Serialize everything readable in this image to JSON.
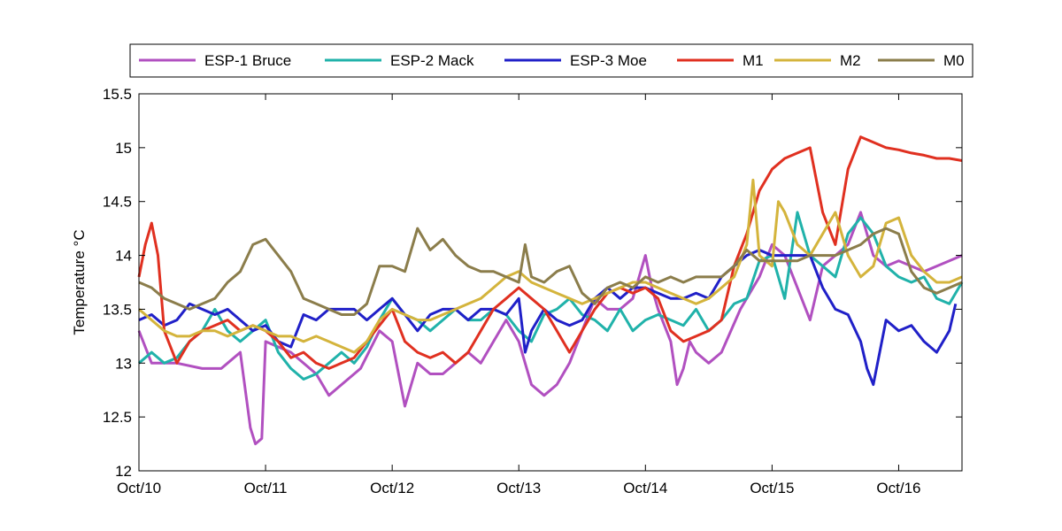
{
  "chart_data": {
    "type": "line",
    "xlabel": "",
    "ylabel": "Temperature °C",
    "x_ticks": [
      "Oct/10",
      "Oct/11",
      "Oct/12",
      "Oct/13",
      "Oct/14",
      "Oct/15",
      "Oct/16"
    ],
    "x_unit": "day offset from Oct/10",
    "xlim": [
      0,
      6.5
    ],
    "ylim": [
      12,
      15.5
    ],
    "y_ticks": [
      12,
      12.5,
      13,
      13.5,
      14,
      14.5,
      15,
      15.5
    ],
    "grid": false,
    "legend_position": "top, horizontal",
    "series": [
      {
        "name": "ESP-1 Bruce",
        "color": "#b150c0",
        "x": [
          0,
          0.1,
          0.3,
          0.5,
          0.65,
          0.8,
          0.88,
          0.92,
          0.97,
          1.0,
          1.2,
          1.4,
          1.5,
          1.6,
          1.75,
          1.9,
          2.0,
          2.1,
          2.2,
          2.3,
          2.4,
          2.5,
          2.6,
          2.7,
          2.8,
          2.9,
          3.0,
          3.1,
          3.2,
          3.3,
          3.4,
          3.5,
          3.6,
          3.7,
          3.8,
          3.9,
          4.0,
          4.05,
          4.1,
          4.2,
          4.25,
          4.3,
          4.35,
          4.4,
          4.5,
          4.6,
          4.75,
          4.9,
          5.0,
          5.1,
          5.3,
          5.4,
          5.5,
          5.6,
          5.7,
          5.8,
          5.9,
          6.0,
          6.1,
          6.2,
          6.3,
          6.4,
          6.5
        ],
        "y": [
          13.3,
          13.0,
          13.0,
          12.95,
          12.95,
          13.1,
          12.4,
          12.25,
          12.3,
          13.2,
          13.1,
          12.9,
          12.7,
          12.8,
          12.95,
          13.3,
          13.2,
          12.6,
          13.0,
          12.9,
          12.9,
          13.0,
          13.1,
          13.0,
          13.2,
          13.4,
          13.2,
          12.8,
          12.7,
          12.8,
          13.0,
          13.3,
          13.6,
          13.5,
          13.5,
          13.6,
          14.0,
          13.7,
          13.5,
          13.2,
          12.8,
          12.95,
          13.2,
          13.1,
          13.0,
          13.1,
          13.5,
          13.8,
          14.1,
          14.0,
          13.4,
          13.9,
          14.0,
          14.1,
          14.4,
          14.0,
          13.9,
          13.95,
          13.9,
          13.85,
          13.9,
          13.95,
          14.0
        ]
      },
      {
        "name": "ESP-2 Mack",
        "color": "#20b2aa",
        "x": [
          0,
          0.1,
          0.2,
          0.3,
          0.4,
          0.5,
          0.6,
          0.7,
          0.8,
          0.9,
          1.0,
          1.1,
          1.2,
          1.3,
          1.4,
          1.5,
          1.6,
          1.7,
          1.8,
          1.9,
          2.0,
          2.1,
          2.2,
          2.3,
          2.4,
          2.5,
          2.6,
          2.7,
          2.8,
          2.9,
          3.0,
          3.1,
          3.2,
          3.3,
          3.4,
          3.5,
          3.6,
          3.7,
          3.8,
          3.9,
          4.0,
          4.1,
          4.2,
          4.3,
          4.4,
          4.5,
          4.6,
          4.7,
          4.8,
          4.9,
          5.0,
          5.1,
          5.2,
          5.3,
          5.4,
          5.5,
          5.6,
          5.7,
          5.8,
          5.9,
          6.0,
          6.1,
          6.2,
          6.3,
          6.4,
          6.5
        ],
        "y": [
          13.0,
          13.1,
          13.0,
          13.05,
          13.2,
          13.3,
          13.5,
          13.3,
          13.2,
          13.3,
          13.4,
          13.1,
          12.95,
          12.85,
          12.9,
          13.0,
          13.1,
          13.0,
          13.15,
          13.4,
          13.6,
          13.45,
          13.4,
          13.3,
          13.4,
          13.5,
          13.4,
          13.4,
          13.5,
          13.45,
          13.3,
          13.2,
          13.45,
          13.5,
          13.6,
          13.45,
          13.4,
          13.3,
          13.5,
          13.3,
          13.4,
          13.45,
          13.4,
          13.35,
          13.5,
          13.3,
          13.4,
          13.55,
          13.6,
          13.95,
          14.0,
          13.6,
          14.4,
          14.0,
          13.9,
          13.8,
          14.2,
          14.35,
          14.2,
          13.9,
          13.8,
          13.75,
          13.8,
          13.6,
          13.55,
          13.75
        ]
      },
      {
        "name": "ESP-3 Moe",
        "color": "#2020c8",
        "x": [
          0,
          0.1,
          0.2,
          0.3,
          0.4,
          0.5,
          0.6,
          0.7,
          0.8,
          0.9,
          1.0,
          1.1,
          1.2,
          1.3,
          1.4,
          1.5,
          1.6,
          1.7,
          1.8,
          1.9,
          2.0,
          2.1,
          2.2,
          2.3,
          2.4,
          2.5,
          2.6,
          2.7,
          2.8,
          2.9,
          3.0,
          3.05,
          3.1,
          3.2,
          3.3,
          3.4,
          3.5,
          3.6,
          3.7,
          3.8,
          3.9,
          4.0,
          4.1,
          4.2,
          4.3,
          4.4,
          4.5,
          4.6,
          4.7,
          4.8,
          4.9,
          5.0,
          5.1,
          5.2,
          5.3,
          5.4,
          5.5,
          5.6,
          5.7,
          5.75,
          5.8,
          5.9,
          6.0,
          6.1,
          6.2,
          6.3,
          6.4,
          6.45
        ],
        "y": [
          13.4,
          13.45,
          13.35,
          13.4,
          13.55,
          13.5,
          13.45,
          13.5,
          13.4,
          13.3,
          13.35,
          13.2,
          13.15,
          13.45,
          13.4,
          13.5,
          13.5,
          13.5,
          13.4,
          13.5,
          13.6,
          13.45,
          13.3,
          13.45,
          13.5,
          13.5,
          13.4,
          13.5,
          13.5,
          13.45,
          13.6,
          13.1,
          13.3,
          13.5,
          13.4,
          13.35,
          13.4,
          13.6,
          13.7,
          13.6,
          13.7,
          13.7,
          13.65,
          13.6,
          13.6,
          13.65,
          13.6,
          13.8,
          13.9,
          14.0,
          14.05,
          14.0,
          14.0,
          14.0,
          14.0,
          13.7,
          13.5,
          13.45,
          13.2,
          12.95,
          12.8,
          13.4,
          13.3,
          13.35,
          13.2,
          13.1,
          13.3,
          13.55
        ]
      },
      {
        "name": "M1",
        "color": "#e03020",
        "x": [
          0,
          0.05,
          0.1,
          0.15,
          0.2,
          0.3,
          0.4,
          0.5,
          0.6,
          0.7,
          0.8,
          0.9,
          1.0,
          1.1,
          1.2,
          1.3,
          1.4,
          1.5,
          1.6,
          1.7,
          1.8,
          1.9,
          2.0,
          2.1,
          2.2,
          2.3,
          2.4,
          2.5,
          2.6,
          2.7,
          2.8,
          2.9,
          3.0,
          3.1,
          3.2,
          3.3,
          3.4,
          3.5,
          3.6,
          3.7,
          3.8,
          3.9,
          4.0,
          4.1,
          4.2,
          4.3,
          4.4,
          4.5,
          4.6,
          4.7,
          4.8,
          4.9,
          5.0,
          5.1,
          5.2,
          5.3,
          5.4,
          5.5,
          5.6,
          5.7,
          5.8,
          5.9,
          6.0,
          6.1,
          6.2,
          6.3,
          6.4,
          6.5
        ],
        "y": [
          13.8,
          14.1,
          14.3,
          14.0,
          13.3,
          13.0,
          13.2,
          13.3,
          13.35,
          13.4,
          13.3,
          13.35,
          13.3,
          13.2,
          13.05,
          13.1,
          13.0,
          12.95,
          13.0,
          13.05,
          13.2,
          13.35,
          13.5,
          13.2,
          13.1,
          13.05,
          13.1,
          13.0,
          13.1,
          13.3,
          13.5,
          13.6,
          13.7,
          13.6,
          13.5,
          13.3,
          13.1,
          13.3,
          13.5,
          13.65,
          13.7,
          13.65,
          13.7,
          13.6,
          13.3,
          13.2,
          13.25,
          13.3,
          13.4,
          13.9,
          14.2,
          14.6,
          14.8,
          14.9,
          14.95,
          15.0,
          14.4,
          14.1,
          14.8,
          15.1,
          15.05,
          15.0,
          14.98,
          14.95,
          14.93,
          14.9,
          14.9,
          14.88
        ]
      },
      {
        "name": "M2",
        "color": "#d4b43c",
        "x": [
          0,
          0.1,
          0.2,
          0.3,
          0.4,
          0.5,
          0.6,
          0.7,
          0.8,
          0.9,
          1.0,
          1.1,
          1.2,
          1.3,
          1.4,
          1.5,
          1.6,
          1.7,
          1.8,
          1.9,
          2.0,
          2.1,
          2.2,
          2.3,
          2.4,
          2.5,
          2.6,
          2.7,
          2.8,
          2.9,
          3.0,
          3.1,
          3.2,
          3.3,
          3.4,
          3.5,
          3.6,
          3.7,
          3.8,
          3.9,
          4.0,
          4.1,
          4.2,
          4.3,
          4.4,
          4.5,
          4.6,
          4.7,
          4.8,
          4.85,
          4.9,
          5.0,
          5.05,
          5.1,
          5.2,
          5.3,
          5.4,
          5.5,
          5.6,
          5.7,
          5.8,
          5.9,
          6.0,
          6.1,
          6.2,
          6.3,
          6.4,
          6.5
        ],
        "y": [
          13.5,
          13.4,
          13.3,
          13.25,
          13.25,
          13.3,
          13.3,
          13.25,
          13.3,
          13.35,
          13.3,
          13.25,
          13.25,
          13.2,
          13.25,
          13.2,
          13.15,
          13.1,
          13.2,
          13.4,
          13.5,
          13.45,
          13.4,
          13.4,
          13.45,
          13.5,
          13.55,
          13.6,
          13.7,
          13.8,
          13.85,
          13.75,
          13.7,
          13.65,
          13.6,
          13.55,
          13.6,
          13.65,
          13.7,
          13.75,
          13.75,
          13.7,
          13.65,
          13.6,
          13.55,
          13.6,
          13.7,
          13.8,
          14.1,
          14.7,
          14.0,
          13.9,
          14.5,
          14.4,
          14.1,
          14.0,
          14.2,
          14.4,
          14.0,
          13.8,
          13.9,
          14.3,
          14.35,
          14.0,
          13.85,
          13.75,
          13.75,
          13.8
        ]
      },
      {
        "name": "M0",
        "color": "#8b7d4b",
        "x": [
          0,
          0.1,
          0.2,
          0.3,
          0.4,
          0.5,
          0.6,
          0.7,
          0.8,
          0.9,
          1.0,
          1.1,
          1.2,
          1.3,
          1.4,
          1.5,
          1.6,
          1.7,
          1.8,
          1.9,
          2.0,
          2.1,
          2.2,
          2.3,
          2.4,
          2.5,
          2.6,
          2.7,
          2.8,
          2.9,
          3.0,
          3.05,
          3.1,
          3.2,
          3.3,
          3.4,
          3.5,
          3.6,
          3.7,
          3.8,
          3.9,
          4.0,
          4.1,
          4.2,
          4.3,
          4.4,
          4.5,
          4.6,
          4.7,
          4.8,
          4.9,
          5.0,
          5.1,
          5.2,
          5.3,
          5.4,
          5.5,
          5.6,
          5.7,
          5.8,
          5.9,
          6.0,
          6.1,
          6.2,
          6.3,
          6.4,
          6.5
        ],
        "y": [
          13.75,
          13.7,
          13.6,
          13.55,
          13.5,
          13.55,
          13.6,
          13.75,
          13.85,
          14.1,
          14.15,
          14.0,
          13.85,
          13.6,
          13.55,
          13.5,
          13.45,
          13.45,
          13.55,
          13.9,
          13.9,
          13.85,
          14.25,
          14.05,
          14.15,
          14.0,
          13.9,
          13.85,
          13.85,
          13.8,
          13.75,
          14.1,
          13.8,
          13.75,
          13.85,
          13.9,
          13.65,
          13.55,
          13.7,
          13.75,
          13.7,
          13.8,
          13.75,
          13.8,
          13.75,
          13.8,
          13.8,
          13.8,
          13.9,
          14.05,
          13.95,
          13.95,
          13.95,
          13.95,
          14.0,
          14.0,
          14.0,
          14.05,
          14.1,
          14.2,
          14.25,
          14.2,
          13.85,
          13.7,
          13.65,
          13.7,
          13.75
        ]
      }
    ]
  }
}
